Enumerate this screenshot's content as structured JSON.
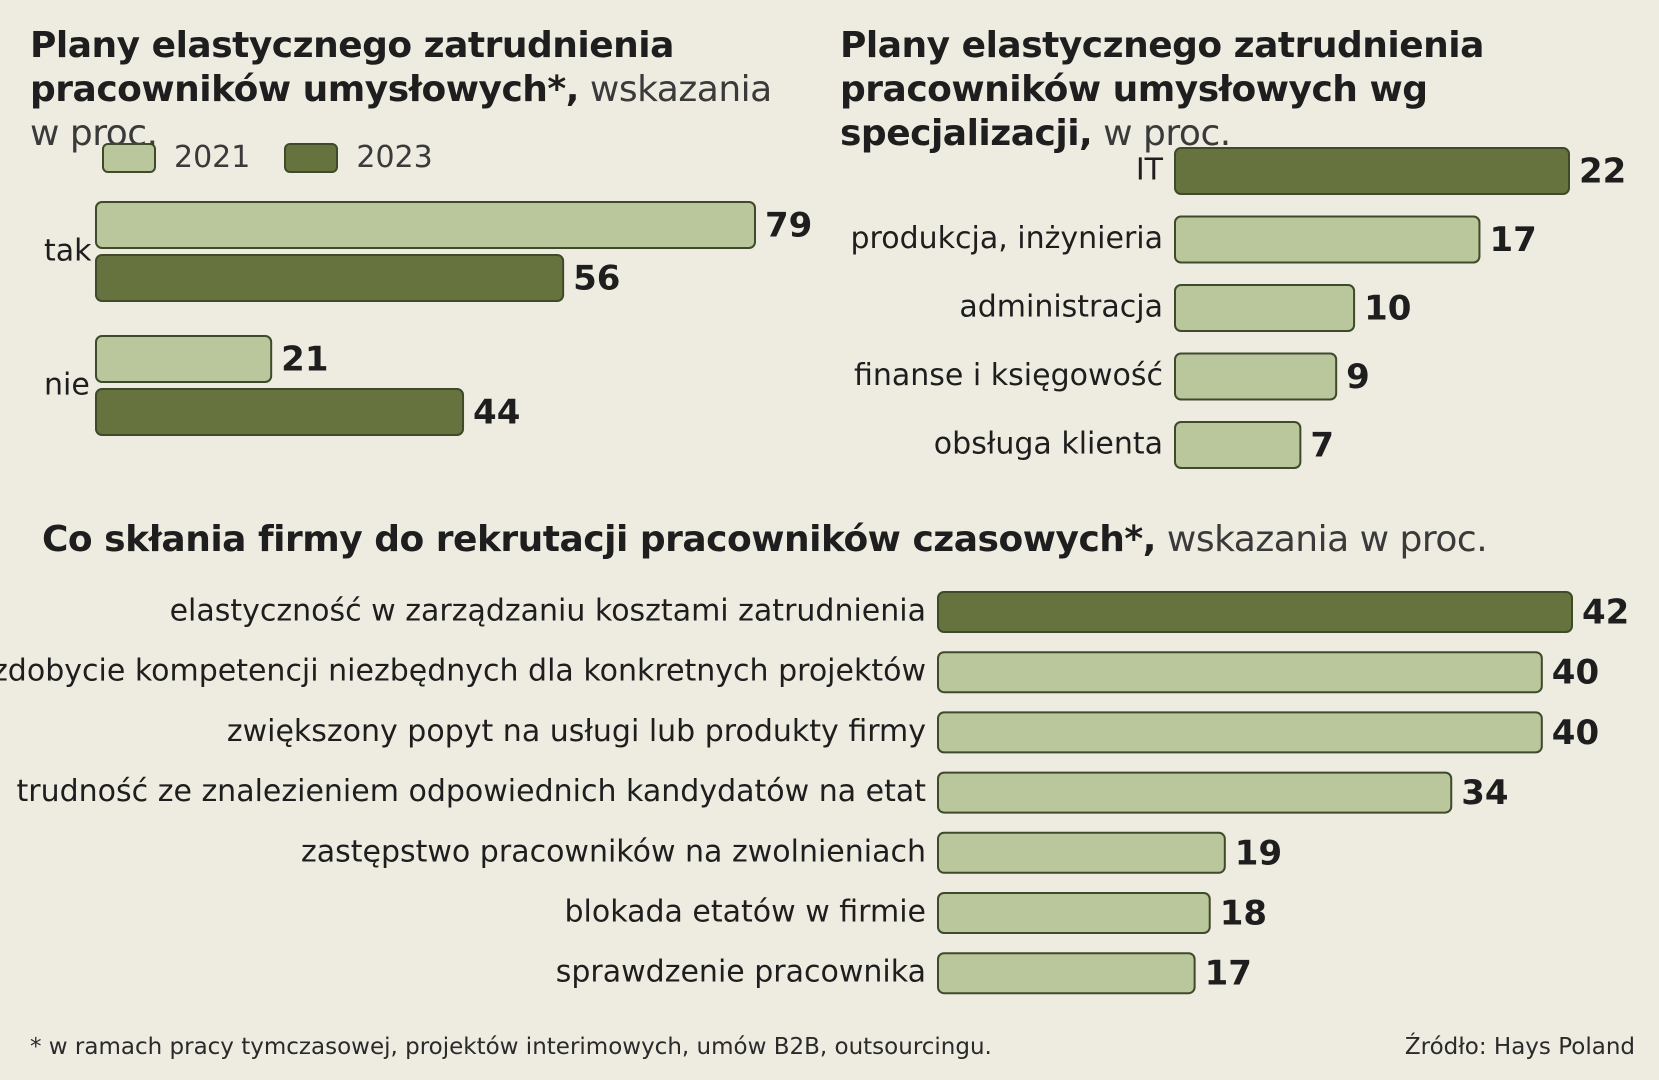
{
  "colors": {
    "light": "#bac79c",
    "dark": "#66733e",
    "stroke": "#3f4a2a",
    "background": "#eeebe1"
  },
  "chart_data": [
    {
      "type": "bar",
      "orientation": "horizontal",
      "title": "Plany elastycznego zatrudnienia pracowników umysłowych*,",
      "subtitle": "wskazania w proc.",
      "categories": [
        "tak",
        "nie"
      ],
      "series": [
        {
          "name": "2021",
          "values": [
            79,
            21
          ]
        },
        {
          "name": "2023",
          "values": [
            56,
            44
          ]
        }
      ],
      "xlim": [
        0,
        100
      ],
      "legend": "top-left"
    },
    {
      "type": "bar",
      "orientation": "horizontal",
      "title": "Plany elastycznego zatrudnienia pracowników umysłowych wg specjalizacji,",
      "subtitle": "w proc.",
      "categories": [
        "IT",
        "produkcja, inżynieria",
        "administracja",
        "finanse i księgowość",
        "obsługa klienta"
      ],
      "values": [
        22,
        17,
        10,
        9,
        7
      ],
      "highlight": [
        true,
        false,
        false,
        false,
        false
      ]
    },
    {
      "type": "bar",
      "orientation": "horizontal",
      "title": "Co skłania firmy do rekrutacji pracowników czasowych*,",
      "subtitle": "wskazania w proc.",
      "categories": [
        "elastyczność w zarządzaniu kosztami zatrudnienia",
        "zdobycie kompetencji niezbędnych dla konkretnych projektów",
        "zwiększony popyt na usługi lub produkty firmy",
        "trudność ze znalezieniem odpowiednich kandydatów na etat",
        "zastępstwo pracowników na zwolnieniach",
        "blokada etatów w firmie",
        "sprawdzenie pracownika"
      ],
      "values": [
        42,
        40,
        40,
        34,
        19,
        18,
        17
      ],
      "highlight": [
        true,
        false,
        false,
        false,
        false,
        false,
        false
      ]
    }
  ],
  "footnote": "* w ramach pracy tymczasowej, projektów interimowych, umów B2B, outsourcingu.",
  "source": "Źródło: Hays Poland"
}
